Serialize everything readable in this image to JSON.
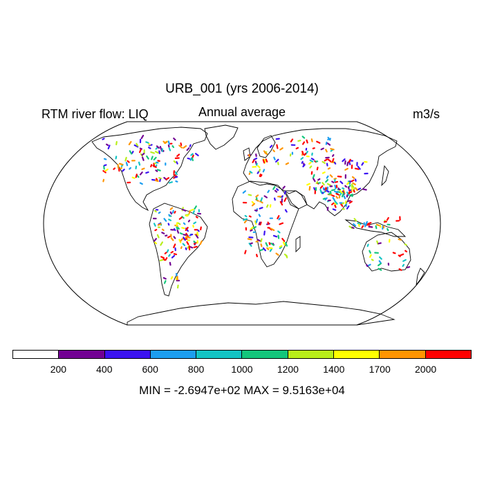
{
  "title": "URB_001 (yrs 2006-2014)",
  "left_title": "RTM river flow: LIQ",
  "center_title": "Annual average",
  "units": "m3/s",
  "colorbar": {
    "labels": [
      "200",
      "400",
      "600",
      "800",
      "1000",
      "1200",
      "1400",
      "1700",
      "2000"
    ],
    "colors": [
      "#ffffff",
      "#720093",
      "#3b12f2",
      "#1c9ef0",
      "#12c4c4",
      "#13c67b",
      "#b8ef1a",
      "#ffff00",
      "#ff9500",
      "#ff0000"
    ]
  },
  "minmax": "MIN = -2.6947e+02 MAX = 9.5163e+04"
}
